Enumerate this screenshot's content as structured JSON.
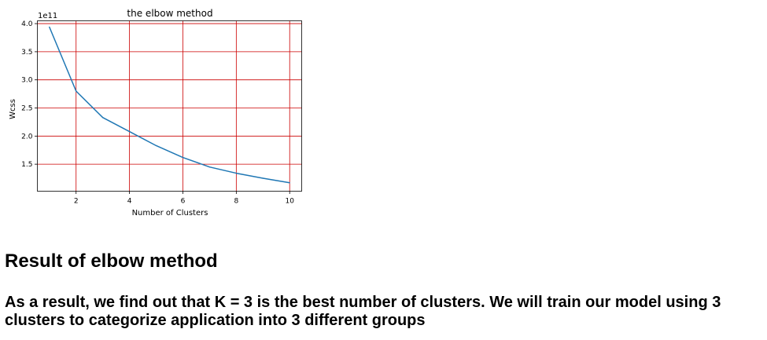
{
  "chart_data": {
    "type": "line",
    "title": "the elbow method",
    "xlabel": "Number of Clusters",
    "ylabel": "Wcss",
    "y_offset_label": "1e11",
    "xlim": [
      0.55,
      10.45
    ],
    "ylim": [
      1.02,
      4.05
    ],
    "xticks": [
      2,
      4,
      6,
      8,
      10
    ],
    "yticks": [
      1.5,
      2.0,
      2.5,
      3.0,
      3.5,
      4.0
    ],
    "xtick_labels": [
      "2",
      "4",
      "6",
      "8",
      "10"
    ],
    "ytick_labels": [
      "1.5",
      "2.0",
      "2.5",
      "3.0",
      "3.5",
      "4.0"
    ],
    "grid": true,
    "grid_color": "#cc0000",
    "line_color": "#1f77b4",
    "series": [
      {
        "x": [
          1,
          2,
          3,
          4,
          5,
          6,
          7,
          8,
          9,
          10
        ],
        "values": [
          3.94,
          2.8,
          2.33,
          2.08,
          1.83,
          1.62,
          1.45,
          1.34,
          1.25,
          1.17
        ]
      }
    ]
  },
  "text": {
    "heading": "Result of elbow method",
    "paragraph": "As a result, we find out that K = 3 is the best number of clusters. We will train our model using 3 clusters to categorize application into 3 different groups"
  }
}
